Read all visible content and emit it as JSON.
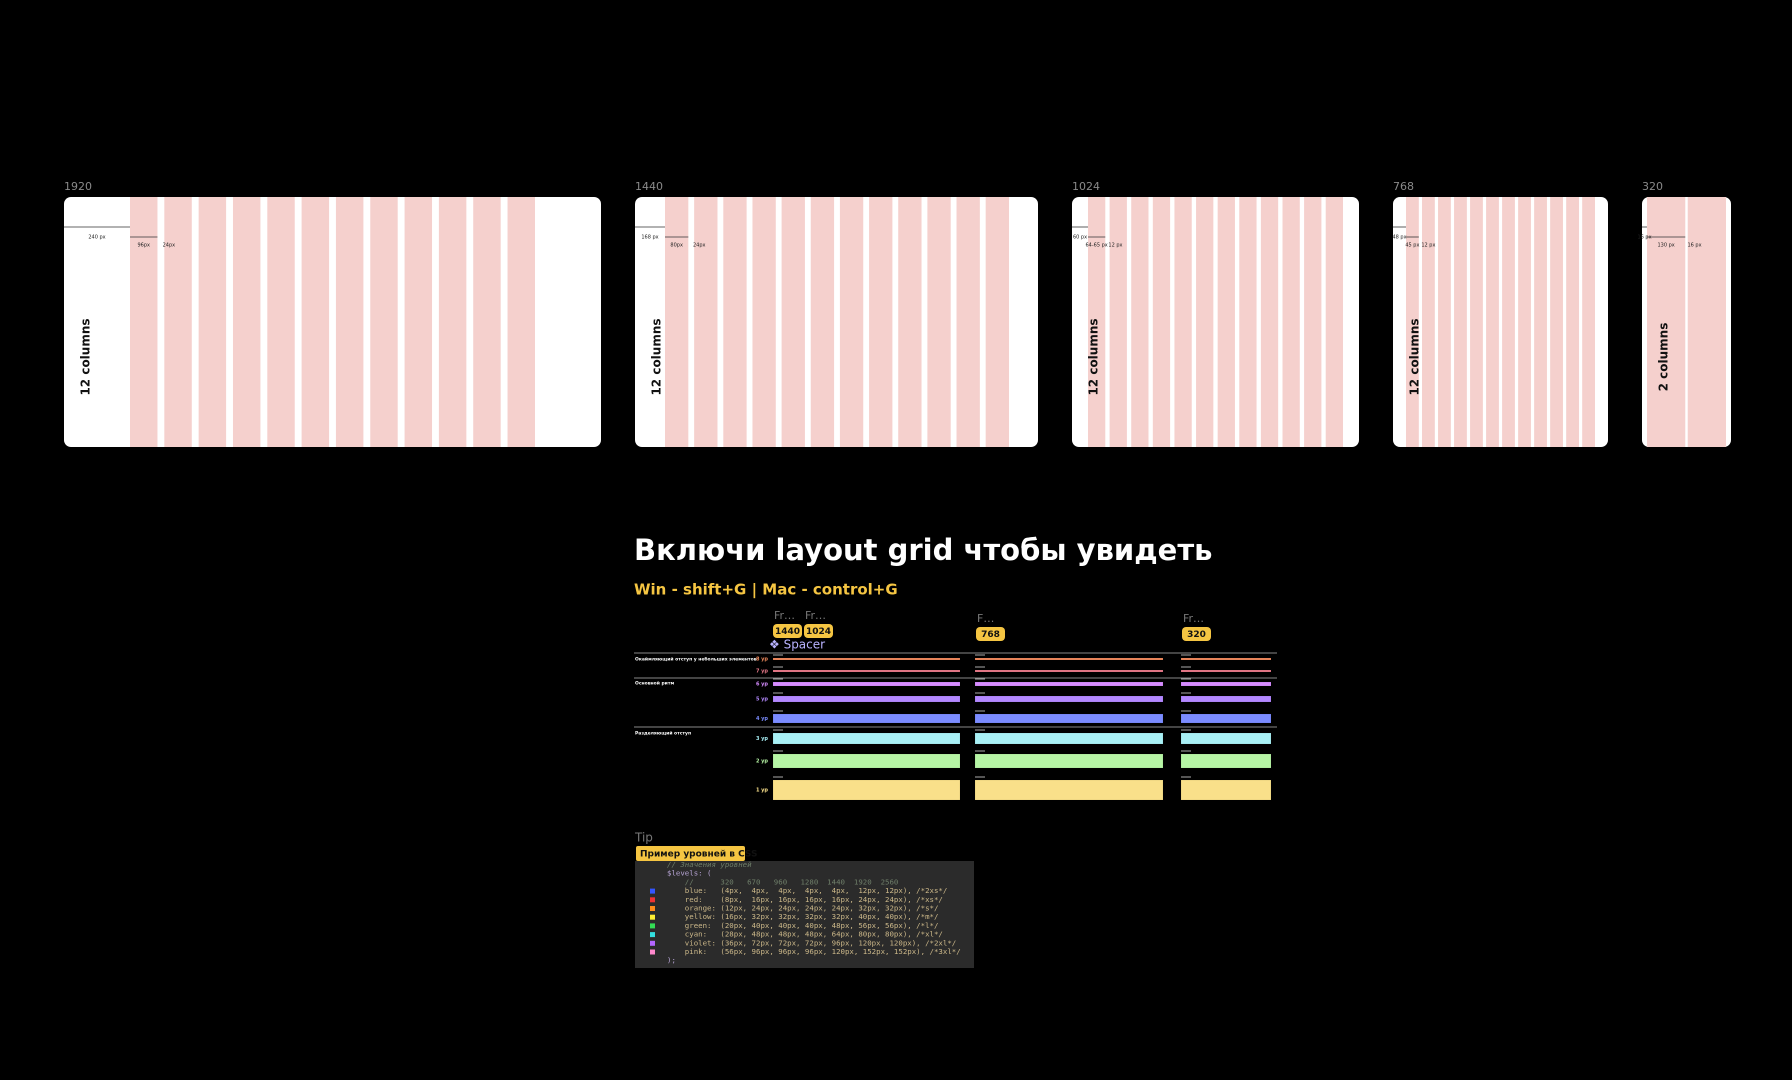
{
  "frames": [
    {
      "label": "1920",
      "columns_label": "12 columns",
      "measures": [
        "240 px",
        "96px",
        "24px"
      ]
    },
    {
      "label": "1440",
      "columns_label": "12 columns",
      "measures": [
        "168 px",
        "80px",
        "24px"
      ]
    },
    {
      "label": "1024",
      "columns_label": "12 columns",
      "measures": [
        "60 px",
        "64-65 px",
        "12 px"
      ]
    },
    {
      "label": "768",
      "columns_label": "12 columns",
      "measures": [
        "48 px",
        "45 px",
        "12 px"
      ]
    },
    {
      "label": "320",
      "columns_label": "2 columns",
      "measures": [
        "16 px",
        "130 px",
        "16 px"
      ]
    }
  ],
  "heading": "Включи layout grid чтобы увидеть",
  "shortcut": "Win - shift+G | Mac - control+G",
  "spacer": {
    "frame_tags": [
      {
        "name": "Fr…",
        "badge": "1440"
      },
      {
        "name": "Fr…",
        "badge": "1024"
      },
      {
        "name": "F…",
        "badge": "768"
      },
      {
        "name": "Fr…",
        "badge": "320"
      }
    ],
    "component": "❖ Spacer",
    "sections": [
      "Окаймляющий отступ у небольших элементов",
      "Основной ритм",
      "Разделяющий отступ"
    ],
    "levels": [
      "8 ур",
      "7 ур",
      "6 ур",
      "5 ур",
      "4 ур",
      "3 ур",
      "2 ур",
      "1 ур"
    ]
  },
  "tip": {
    "label": "Tip",
    "badge": "Пример уровней в CSS",
    "code": [
      "// Значения уровней",
      "$levels: (",
      "    //      320   670   960   1280  1440  1920  2560",
      "    blue:   (4px,  4px,  4px,  4px,  4px,  12px, 12px), /*2xs*/",
      "    red:    (8px,  16px, 16px, 16px, 16px, 24px, 24px), /*xs*/",
      "    orange: (12px, 24px, 24px, 24px, 24px, 32px, 32px), /*s*/",
      "    yellow: (16px, 32px, 32px, 32px, 32px, 40px, 40px), /*m*/",
      "    green:  (20px, 40px, 40px, 40px, 48px, 56px, 56px), /*l*/",
      "    cyan:   (28px, 48px, 48px, 48px, 64px, 80px, 80px), /*xl*/",
      "    violet: (36px, 72px, 72px, 72px, 96px, 120px, 120px), /*2xl*/",
      "    pink:   (56px, 96px, 96px, 96px, 120px, 152px, 152px), /*3xl*/",
      ");"
    ]
  }
}
